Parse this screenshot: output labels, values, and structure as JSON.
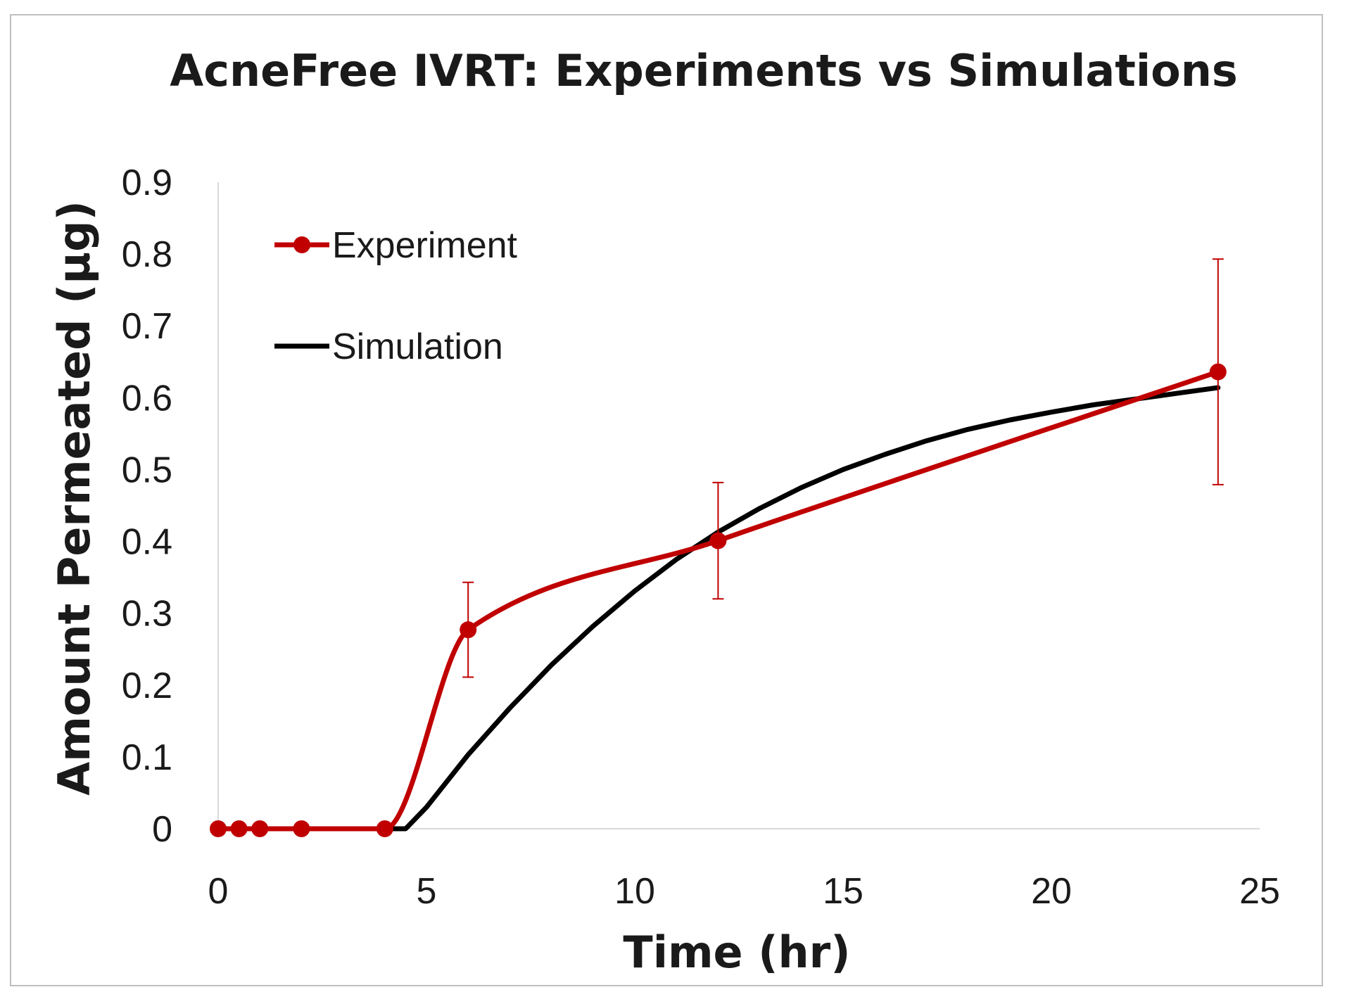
{
  "chart_data": {
    "type": "line",
    "title": "AcneFree IVRT: Experiments vs Simulations",
    "xlabel": "Time (hr)",
    "ylabel": "Amount Permeated (µg)",
    "xlim": [
      0,
      25
    ],
    "ylim": [
      0,
      0.9
    ],
    "x_ticks": [
      "0",
      "5",
      "10",
      "15",
      "20",
      "25"
    ],
    "y_ticks": [
      "0",
      "0.1",
      "0.2",
      "0.3",
      "0.4",
      "0.5",
      "0.6",
      "0.7",
      "0.8",
      "0.9"
    ],
    "grid": false,
    "legend_position": "top-left",
    "series": [
      {
        "name": "Experiment",
        "color": "#c00000",
        "marker": "circle",
        "smooth": true,
        "x": [
          0,
          0.5,
          1,
          2,
          4,
          6,
          12,
          24
        ],
        "y": [
          0,
          0,
          0,
          0,
          0,
          0.277,
          0.401,
          0.636
        ],
        "error": [
          0,
          0,
          0,
          0,
          0,
          0.066,
          0.081,
          0.157
        ]
      },
      {
        "name": "Simulation",
        "color": "#000000",
        "marker": "none",
        "x": [
          0,
          4.5,
          5,
          6,
          7,
          8,
          9,
          10,
          11,
          12,
          13,
          14,
          15,
          16,
          17,
          18,
          19,
          20,
          21,
          22,
          23,
          24
        ],
        "y": [
          0,
          0,
          0.03,
          0.103,
          0.168,
          0.228,
          0.282,
          0.331,
          0.375,
          0.413,
          0.446,
          0.475,
          0.5,
          0.521,
          0.54,
          0.556,
          0.569,
          0.58,
          0.59,
          0.598,
          0.606,
          0.614
        ]
      }
    ]
  }
}
